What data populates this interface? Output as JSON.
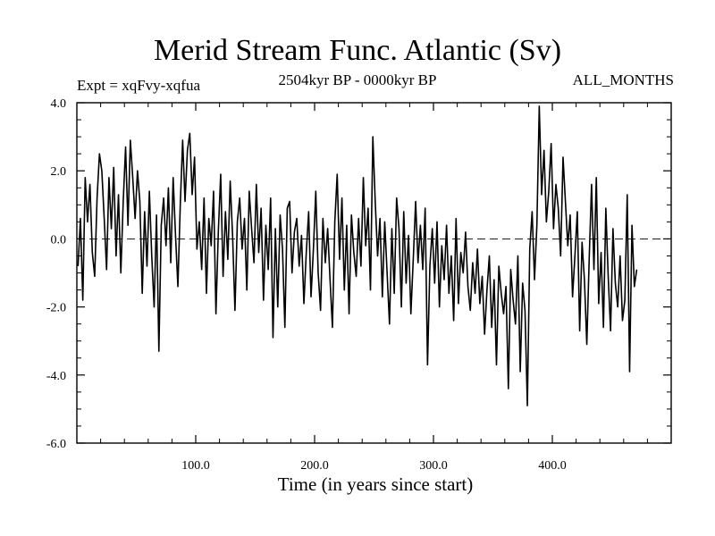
{
  "chart_data": {
    "type": "line",
    "title": "Merid Stream Func. Atlantic (Sv)",
    "subtitle": "2504kyr BP - 0000kyr BP",
    "left_label": "Expt = xqFvy-xqfua",
    "right_label": "ALL_MONTHS",
    "xlabel": "Time (in years since start)",
    "ylabel": "",
    "xlim": [
      0,
      500
    ],
    "ylim": [
      -6.0,
      4.0
    ],
    "x_ticks": [
      100,
      200,
      300,
      400
    ],
    "x_tick_labels": [
      "100.0",
      "200.0",
      "300.0",
      "400.0"
    ],
    "y_ticks": [
      4.0,
      2.0,
      0.0,
      -2.0,
      -4.0,
      -6.0
    ],
    "y_tick_labels": [
      "4.0",
      "2.0",
      "0.0",
      "-2.0",
      "-4.0",
      "-6.0"
    ],
    "reference_line": 0.0,
    "series": [
      {
        "name": "Merid Stream Func.",
        "x_start": 1,
        "x_step": 2,
        "values": [
          -0.8,
          0.6,
          -1.8,
          1.8,
          0.5,
          1.6,
          -0.4,
          -1.1,
          1.2,
          2.5,
          2.0,
          0.6,
          -0.9,
          1.8,
          0.3,
          2.1,
          -0.5,
          1.3,
          -1.0,
          1.1,
          2.7,
          0.4,
          2.9,
          1.8,
          0.6,
          2.0,
          1.1,
          -1.6,
          0.8,
          -0.8,
          1.4,
          -0.5,
          -2.0,
          0.7,
          -3.3,
          0.4,
          1.2,
          -0.2,
          1.5,
          -0.7,
          1.8,
          0.1,
          -1.4,
          1.0,
          2.9,
          1.1,
          2.6,
          3.1,
          1.3,
          2.4,
          -0.3,
          0.5,
          -0.9,
          1.2,
          -1.6,
          0.6,
          -0.2,
          1.4,
          -2.2,
          0.2,
          1.9,
          -1.1,
          0.8,
          -0.6,
          1.7,
          0.1,
          -2.1,
          0.5,
          1.2,
          -0.3,
          0.6,
          -1.5,
          1.4,
          0.3,
          -0.7,
          1.6,
          -0.4,
          0.9,
          -1.8,
          0.4,
          -0.9,
          1.2,
          -2.9,
          0.3,
          -2.0,
          0.7,
          -0.3,
          -2.6,
          0.9,
          1.1,
          -1.0,
          0.2,
          0.6,
          -0.8,
          0.1,
          -1.9,
          -0.4,
          0.8,
          -1.7,
          -0.3,
          1.4,
          -1.0,
          -2.1,
          0.6,
          -0.7,
          0.3,
          -1.2,
          -2.6,
          0.5,
          1.9,
          -0.6,
          1.2,
          -1.5,
          0.4,
          -2.2,
          0.7,
          -0.4,
          -1.1,
          0.6,
          -0.8,
          1.8,
          -0.2,
          0.9,
          -1.5,
          3.0,
          1.1,
          -0.5,
          0.6,
          -1.7,
          0.5,
          -1.0,
          -2.5,
          0.3,
          -1.6,
          1.2,
          0.3,
          -2.0,
          0.8,
          -1.3,
          0.1,
          -2.2,
          -0.6,
          1.1,
          -0.7,
          0.4,
          -0.9,
          0.9,
          -3.7,
          -0.8,
          0.3,
          -1.3,
          0.5,
          -2.0,
          -0.2,
          -1.2,
          0.4,
          -1.6,
          -0.5,
          -2.4,
          0.6,
          -1.9,
          -0.4,
          -1.0,
          0.2,
          -1.4,
          -2.1,
          -0.7,
          -1.6,
          -0.3,
          -1.9,
          -1.1,
          -2.8,
          -1.5,
          -0.5,
          -2.6,
          -1.2,
          -3.7,
          -0.8,
          -1.6,
          -2.2,
          -1.4,
          -4.4,
          -0.9,
          -1.8,
          -2.5,
          -0.5,
          -3.9,
          -1.3,
          -2.1,
          -4.9,
          -0.3,
          0.8,
          -1.2,
          0.4,
          3.9,
          1.3,
          2.6,
          0.5,
          1.4,
          2.8,
          0.3,
          1.6,
          0.9,
          -0.5,
          2.4,
          1.1,
          -0.2,
          0.7,
          -1.7,
          -0.5,
          0.8,
          -2.7,
          -0.1,
          -1.2,
          -3.1,
          -0.6,
          1.6,
          -0.9,
          1.8,
          -1.9,
          -0.4,
          -2.6,
          0.9,
          -1.1,
          -2.7,
          0.3,
          -1.3,
          -2.0,
          -0.5,
          -2.4,
          -1.8,
          1.3,
          -3.9,
          0.4,
          -1.4,
          -0.9
        ]
      }
    ]
  }
}
